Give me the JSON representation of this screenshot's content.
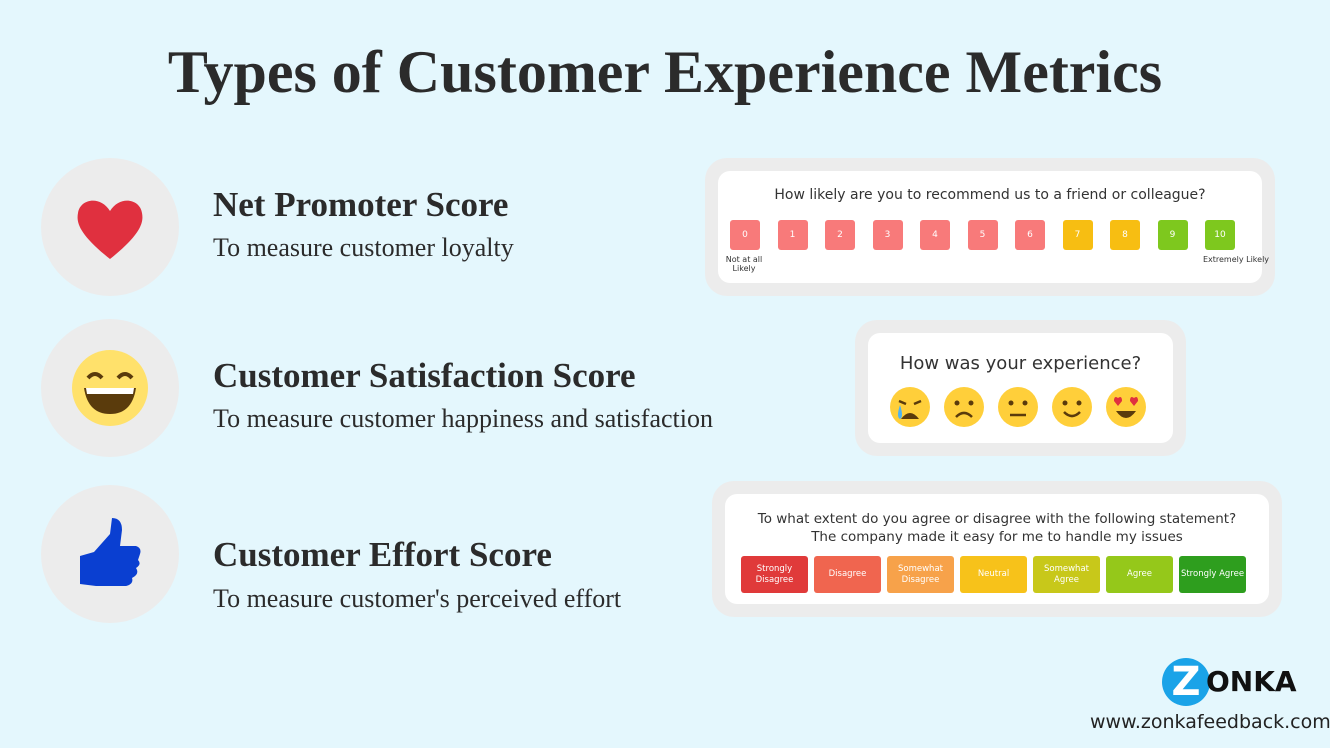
{
  "title": "Types of Customer Experience Metrics",
  "metrics": [
    {
      "name": "Net Promoter Score",
      "description": "To measure customer loyalty",
      "survey": {
        "question": "How likely are you to recommend us to a friend or colleague?",
        "options": [
          "0",
          "1",
          "2",
          "3",
          "4",
          "5",
          "6",
          "7",
          "8",
          "9",
          "10"
        ],
        "low_label": "Not at all Likely",
        "high_label": "Extremely Likely"
      }
    },
    {
      "name": "Customer Satisfaction Score",
      "description": "To measure customer happiness and satisfaction",
      "survey": {
        "question": "How was your experience?"
      }
    },
    {
      "name": "Customer Effort Score",
      "description": "To measure customer's perceived effort",
      "survey": {
        "question": "To what extent do you agree or disagree with the following statement? The company made it easy for me to handle my issues",
        "options": [
          "Strongly Disagree",
          "Disagree",
          "Somewhat Disagree",
          "Neutral",
          "Somewhat Agree",
          "Agree",
          "Strongly Agree"
        ]
      }
    }
  ],
  "logo": {
    "mark": "Z",
    "text": "ONKA"
  },
  "website": "www.zonkafeedback.com"
}
